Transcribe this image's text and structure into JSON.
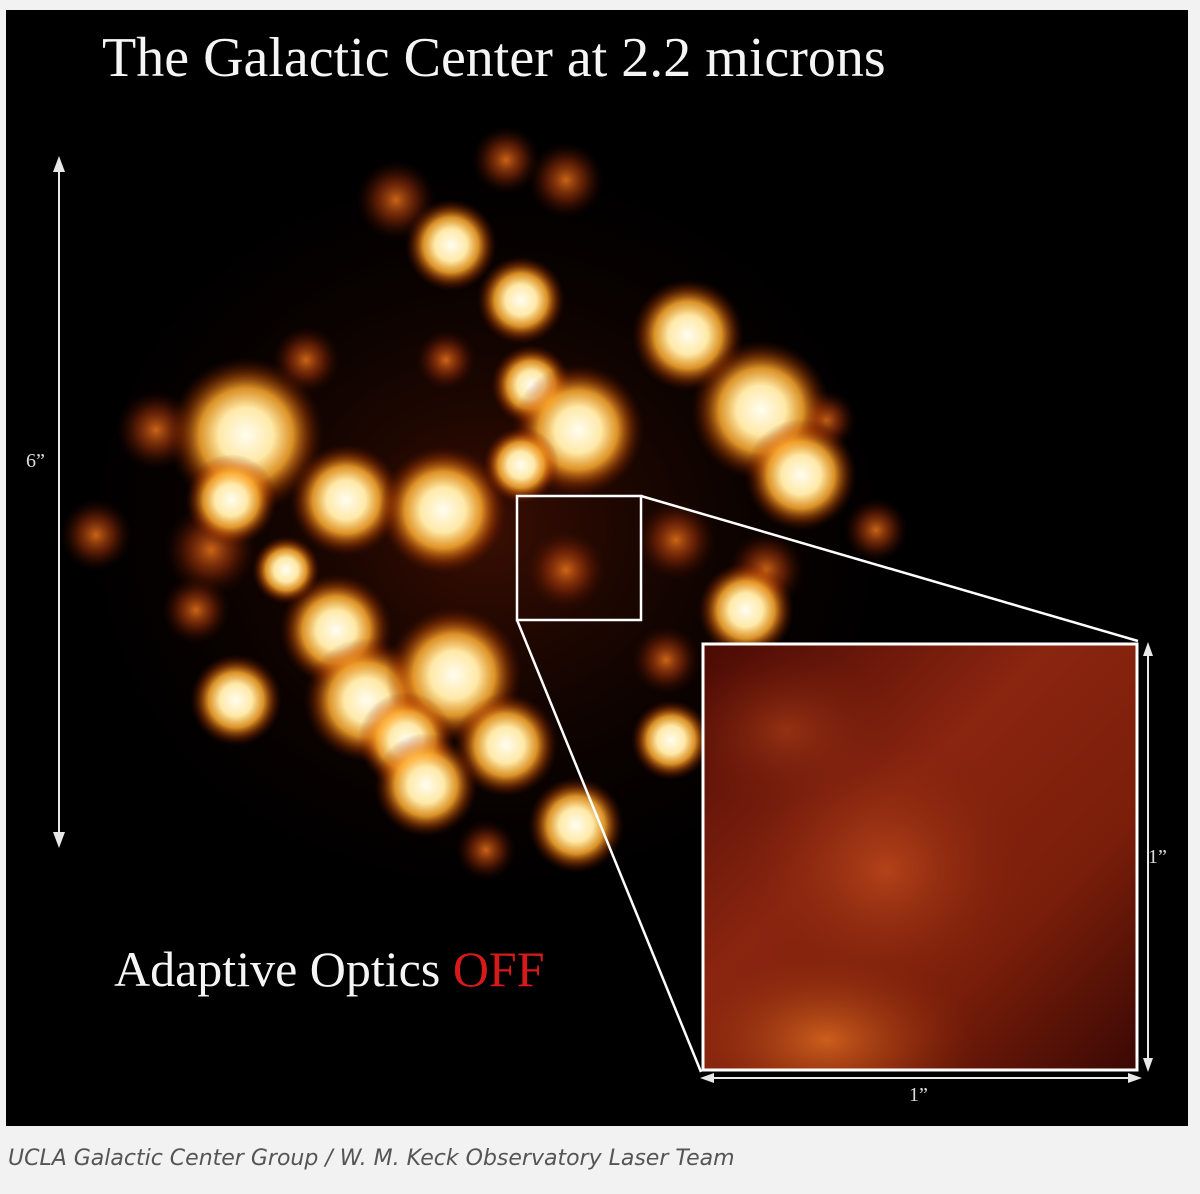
{
  "figure": {
    "title": "The Galactic Center at 2.2 microns",
    "ao_label_prefix": "Adaptive Optics ",
    "ao_label_state": "OFF",
    "scale_vertical": "6”",
    "inset_scale_vertical": "1”",
    "inset_scale_horizontal": "1”",
    "colors": {
      "background": "#000000",
      "star_core": "#fffbe8",
      "star_glow": "#ff9a20",
      "state_red": "#d61a1a"
    }
  },
  "caption": "UCLA Galactic Center Group / W. M. Keck Observatory Laser Team"
}
